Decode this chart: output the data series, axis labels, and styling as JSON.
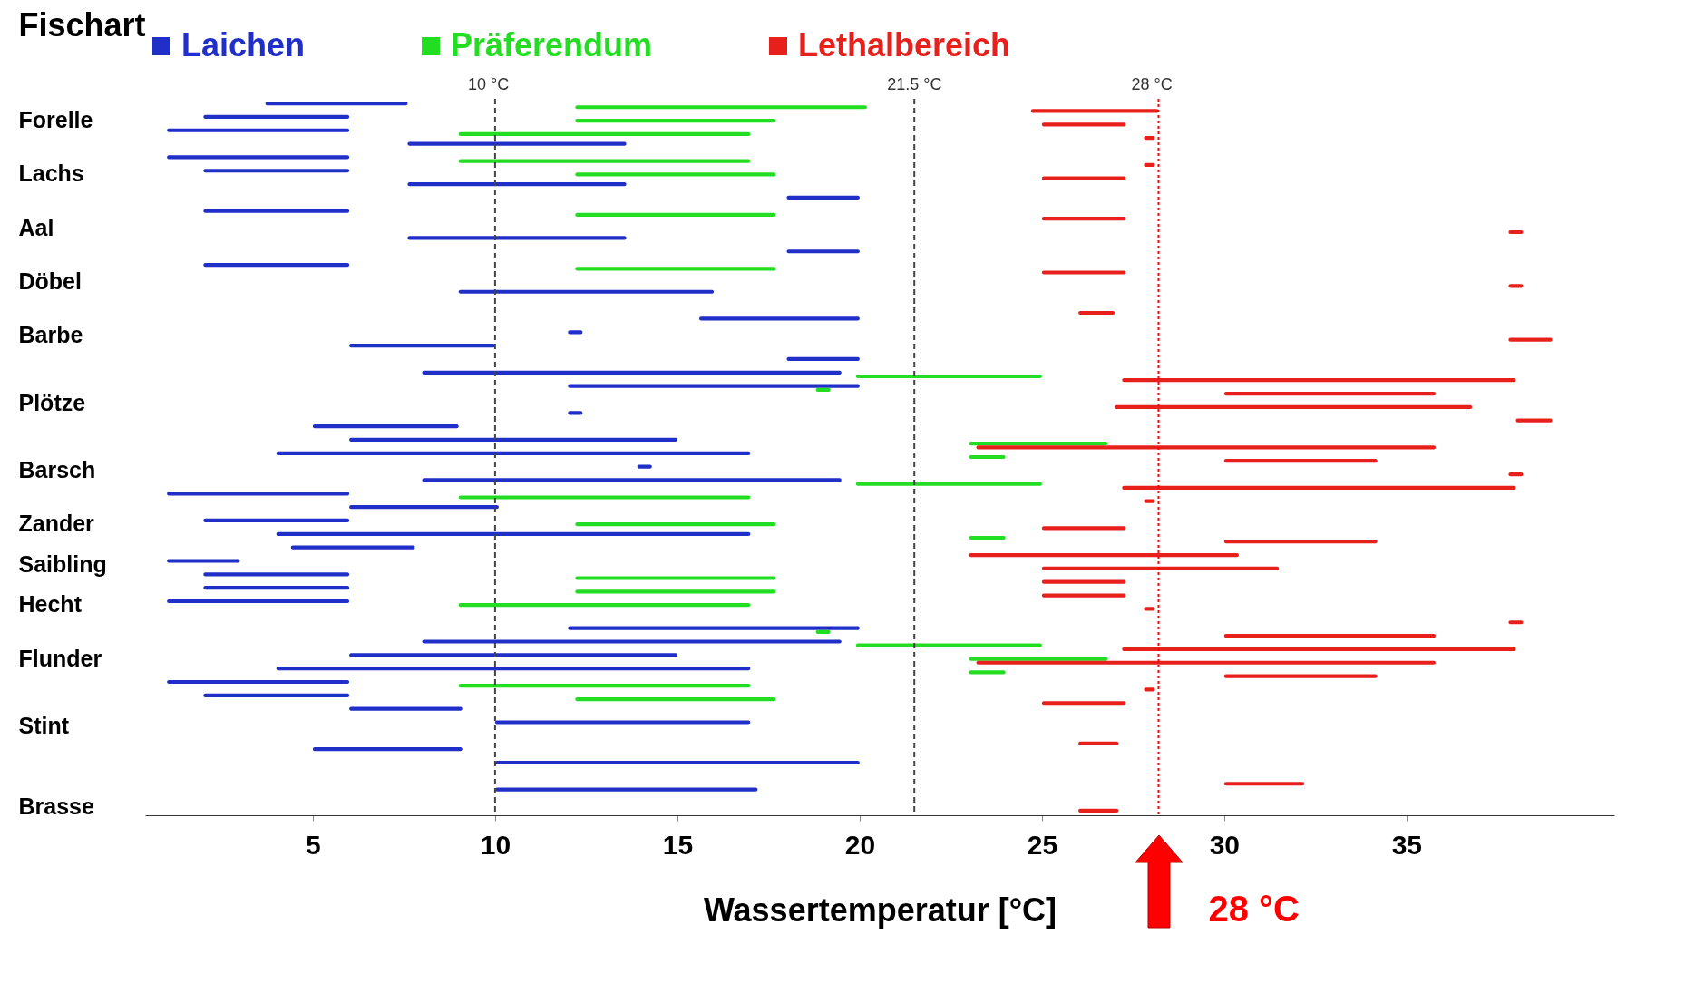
{
  "chart_data": {
    "type": "bar",
    "orientation": "horizontal",
    "ylabel": "Fischart",
    "xlabel": "Wassertemperatur [°C]",
    "legend": "top",
    "xlim": [
      0.4,
      40.7
    ],
    "xticks": [
      5,
      10,
      15,
      20,
      25,
      30,
      35
    ],
    "categories": [
      null,
      "Forelle",
      null,
      null,
      null,
      "Lachs",
      null,
      null,
      null,
      "Aal",
      null,
      null,
      null,
      "Döbel",
      null,
      null,
      null,
      "Barbe",
      null,
      null,
      null,
      null,
      "Plötze",
      null,
      null,
      null,
      null,
      "Barsch",
      null,
      null,
      null,
      "Zander",
      null,
      null,
      "Saibling",
      null,
      null,
      "Hecht",
      null,
      null,
      null,
      "Flunder",
      null,
      null,
      null,
      null,
      "Stint",
      null,
      null,
      null,
      null,
      null,
      "Brasse"
    ],
    "series": [
      {
        "name": "Laichen",
        "color": "#1f2fc8",
        "base": [
          3.7,
          2,
          1,
          7.6,
          1,
          2,
          7.6,
          18,
          2,
          null,
          7.6,
          18,
          2,
          null,
          9,
          null,
          15.6,
          12,
          6,
          18,
          8,
          12,
          null,
          12,
          5,
          6,
          4,
          13.9,
          8,
          1,
          6,
          2,
          4,
          4.4,
          1,
          2,
          2,
          1,
          null,
          12,
          8,
          6,
          4,
          1,
          2,
          6,
          10,
          null,
          5,
          10,
          null,
          10,
          null
        ],
        "values": [
          3.9,
          4,
          5,
          6,
          5,
          4,
          6,
          2,
          4,
          null,
          6,
          2,
          4,
          null,
          7,
          null,
          4.4,
          0.4,
          4,
          2,
          11.5,
          8,
          null,
          0.4,
          4,
          9,
          13,
          0.4,
          11.5,
          5,
          4.1,
          4,
          13,
          3.4,
          2,
          4,
          4,
          5,
          null,
          8,
          11.5,
          9,
          13,
          5,
          4,
          3.1,
          7,
          null,
          4.1,
          10,
          null,
          7.2,
          null
        ]
      },
      {
        "name": "Präferendum",
        "color": "#22dd22",
        "base": [
          12.2,
          12.2,
          9,
          null,
          9,
          12.2,
          null,
          null,
          12.2,
          null,
          null,
          null,
          12.2,
          null,
          null,
          null,
          null,
          null,
          null,
          null,
          19.9,
          18.8,
          null,
          null,
          null,
          23,
          23,
          null,
          19.9,
          9,
          null,
          12.2,
          23,
          null,
          null,
          12.2,
          12.2,
          9,
          null,
          18.8,
          19.9,
          23,
          23,
          9,
          12.2,
          null,
          null,
          null,
          null,
          null,
          null,
          null,
          null
        ],
        "values": [
          8,
          5.5,
          8,
          null,
          8,
          5.5,
          null,
          null,
          5.5,
          null,
          null,
          null,
          5.5,
          null,
          null,
          null,
          null,
          null,
          null,
          null,
          5.1,
          0.4,
          null,
          null,
          null,
          3.8,
          1,
          null,
          5.1,
          8,
          null,
          5.5,
          1,
          null,
          null,
          5.5,
          5.5,
          8,
          null,
          0.4,
          5.1,
          3.8,
          1,
          8,
          5.5,
          null,
          null,
          null,
          null,
          null,
          null,
          null,
          null
        ]
      },
      {
        "name": "Lethalbereich",
        "color": "#e8201c",
        "base": [
          24.7,
          25,
          27.8,
          null,
          27.8,
          25,
          null,
          null,
          25,
          37.8,
          null,
          null,
          25,
          37.8,
          null,
          26,
          null,
          37.8,
          null,
          null,
          27.2,
          30,
          27,
          38,
          null,
          23.2,
          30,
          37.8,
          27.2,
          27.8,
          null,
          25,
          30,
          23,
          25,
          25,
          25,
          27.8,
          37.8,
          30,
          27.2,
          23.2,
          30,
          27.8,
          25,
          null,
          null,
          26,
          null,
          null,
          30,
          null,
          26
        ],
        "values": [
          3.5,
          2.3,
          0.3,
          null,
          0.3,
          2.3,
          null,
          null,
          2.3,
          0.4,
          null,
          null,
          2.3,
          0.4,
          null,
          1,
          null,
          1.2,
          null,
          null,
          10.8,
          5.8,
          9.8,
          1,
          null,
          12.6,
          4.2,
          0.4,
          10.8,
          0.3,
          null,
          2.3,
          4.2,
          7.4,
          6.5,
          2.3,
          2.3,
          0.3,
          0.4,
          5.8,
          10.8,
          12.6,
          4.2,
          0.3,
          2.3,
          null,
          null,
          1.1,
          null,
          null,
          2.2,
          null,
          1.1
        ]
      }
    ],
    "ref_lines": [
      {
        "axis": "x",
        "value": 10,
        "label": "10 °C",
        "color": "#444444",
        "line_style": "dashed"
      },
      {
        "axis": "x",
        "value": 21.5,
        "label": "21.5 °C",
        "color": "#444444",
        "line_style": "dashed"
      },
      {
        "axis": "x",
        "value": 28.2,
        "label": "28 °C",
        "color": "#ff0000",
        "line_style": "dotted"
      }
    ],
    "annotations": [
      "28 °C"
    ]
  }
}
